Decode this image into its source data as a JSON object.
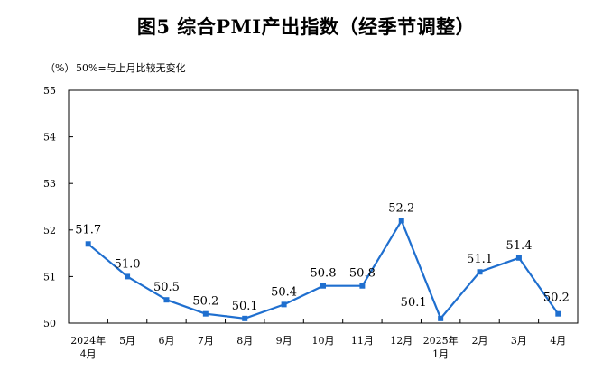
{
  "chart_data": {
    "type": "line",
    "title": "图5  综合PMI产出指数（经季节调整）",
    "unit_label": "（%）",
    "note": "50%=与上月比较无变化",
    "categories": [
      [
        "2024年",
        "4月"
      ],
      [
        "5月"
      ],
      [
        "6月"
      ],
      [
        "7月"
      ],
      [
        "8月"
      ],
      [
        "9月"
      ],
      [
        "10月"
      ],
      [
        "11月"
      ],
      [
        "12月"
      ],
      [
        "2025年",
        "1月"
      ],
      [
        "2月"
      ],
      [
        "3月"
      ],
      [
        "4月"
      ]
    ],
    "values": [
      51.7,
      51.0,
      50.5,
      50.2,
      50.1,
      50.4,
      50.8,
      50.8,
      52.2,
      50.1,
      51.1,
      51.4,
      50.2
    ],
    "data_labels": [
      "51.7",
      "51.0",
      "50.5",
      "50.2",
      "50.1",
      "50.4",
      "50.8",
      "50.8",
      "52.2",
      "50.1",
      "51.1",
      "51.4",
      "50.2"
    ],
    "yticks": [
      "50",
      "51",
      "52",
      "53",
      "54",
      "55"
    ],
    "ylim": [
      50,
      55
    ],
    "grid": false,
    "colors": {
      "line": "#1f6fcf",
      "axis": "#000000"
    }
  }
}
